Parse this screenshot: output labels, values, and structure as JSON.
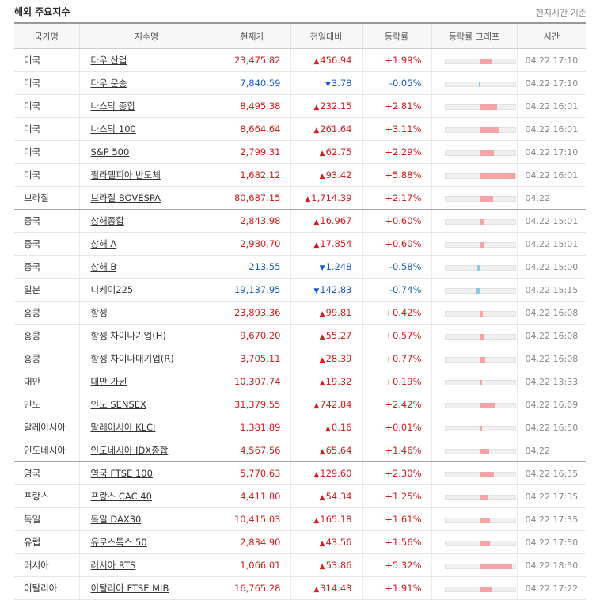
{
  "header": {
    "title": "해외 주요지수",
    "note": "현지시간 기준"
  },
  "columns": [
    "국가명",
    "지수명",
    "현재가",
    "전일대비",
    "등락률",
    "등락률 그래프",
    "시간"
  ],
  "rows": [
    {
      "country": "미국",
      "name": "다우 산업",
      "price": "23,475.82",
      "change": "456.94",
      "rate": "+1.99%",
      "dir": "up",
      "pct": 1.99,
      "time": "04.22 17:10"
    },
    {
      "country": "미국",
      "name": "다우 운송",
      "price": "7,840.59",
      "change": "3.78",
      "rate": "-0.05%",
      "dir": "down",
      "pct": -0.05,
      "time": "04.22 17:10"
    },
    {
      "country": "미국",
      "name": "나스닥 종합",
      "price": "8,495.38",
      "change": "232.15",
      "rate": "+2.81%",
      "dir": "up",
      "pct": 2.81,
      "time": "04.22 16:01"
    },
    {
      "country": "미국",
      "name": "나스닥 100",
      "price": "8,664.64",
      "change": "261.64",
      "rate": "+3.11%",
      "dir": "up",
      "pct": 3.11,
      "time": "04.22 16:01"
    },
    {
      "country": "미국",
      "name": "S&P 500",
      "price": "2,799.31",
      "change": "62.75",
      "rate": "+2.29%",
      "dir": "up",
      "pct": 2.29,
      "time": "04.22 17:10"
    },
    {
      "country": "미국",
      "name": "필라델피아 반도체",
      "price": "1,682.12",
      "change": "93.42",
      "rate": "+5.88%",
      "dir": "up",
      "pct": 5.88,
      "time": "04.22 16:01"
    },
    {
      "country": "브라질",
      "name": "브라질 BOVESPA",
      "price": "80,687.15",
      "change": "1,714.39",
      "rate": "+2.17%",
      "dir": "up",
      "pct": 2.17,
      "time": "04.22",
      "group_end": true
    },
    {
      "country": "중국",
      "name": "상해종합",
      "price": "2,843.98",
      "change": "16.967",
      "rate": "+0.60%",
      "dir": "up",
      "pct": 0.6,
      "time": "04.22 15:01"
    },
    {
      "country": "중국",
      "name": "상해 A",
      "price": "2,980.70",
      "change": "17.854",
      "rate": "+0.60%",
      "dir": "up",
      "pct": 0.6,
      "time": "04.22 15:01"
    },
    {
      "country": "중국",
      "name": "상해 B",
      "price": "213.55",
      "change": "1.248",
      "rate": "-0.58%",
      "dir": "down",
      "pct": -0.58,
      "time": "04.22 15:00"
    },
    {
      "country": "일본",
      "name": "니케이225",
      "price": "19,137.95",
      "change": "142.83",
      "rate": "-0.74%",
      "dir": "down",
      "pct": -0.74,
      "time": "04.22 15:15"
    },
    {
      "country": "홍콩",
      "name": "항셍",
      "price": "23,893.36",
      "change": "99.81",
      "rate": "+0.42%",
      "dir": "up",
      "pct": 0.42,
      "time": "04.22 16:08"
    },
    {
      "country": "홍콩",
      "name": "항셍 차이나기업(H)",
      "price": "9,670.20",
      "change": "55.27",
      "rate": "+0.57%",
      "dir": "up",
      "pct": 0.57,
      "time": "04.22 16:08"
    },
    {
      "country": "홍콩",
      "name": "항셍 차이나대기업(R)",
      "price": "3,705.11",
      "change": "28.39",
      "rate": "+0.77%",
      "dir": "up",
      "pct": 0.77,
      "time": "04.22 16:08"
    },
    {
      "country": "대만",
      "name": "대만 가권",
      "price": "10,307.74",
      "change": "19.32",
      "rate": "+0.19%",
      "dir": "up",
      "pct": 0.19,
      "time": "04.22 13:33"
    },
    {
      "country": "인도",
      "name": "인도 SENSEX",
      "price": "31,379.55",
      "change": "742.84",
      "rate": "+2.42%",
      "dir": "up",
      "pct": 2.42,
      "time": "04.22 16:09"
    },
    {
      "country": "말레이시아",
      "name": "말레이시아 KLCI",
      "price": "1,381.89",
      "change": "0.16",
      "rate": "+0.01%",
      "dir": "up",
      "pct": 0.01,
      "time": "04.22 16:50"
    },
    {
      "country": "인도네시아",
      "name": "인도네시아 IDX종합",
      "price": "4,567.56",
      "change": "65.64",
      "rate": "+1.46%",
      "dir": "up",
      "pct": 1.46,
      "time": "04.22",
      "group_end": true
    },
    {
      "country": "영국",
      "name": "영국 FTSE 100",
      "price": "5,770.63",
      "change": "129.60",
      "rate": "+2.30%",
      "dir": "up",
      "pct": 2.3,
      "time": "04.22 16:35"
    },
    {
      "country": "프랑스",
      "name": "프랑스 CAC 40",
      "price": "4,411.80",
      "change": "54.34",
      "rate": "+1.25%",
      "dir": "up",
      "pct": 1.25,
      "time": "04.22 17:35"
    },
    {
      "country": "독일",
      "name": "독일 DAX30",
      "price": "10,415.03",
      "change": "165.18",
      "rate": "+1.61%",
      "dir": "up",
      "pct": 1.61,
      "time": "04.22 17:35"
    },
    {
      "country": "유럽",
      "name": "유로스톡스 50",
      "price": "2,834.90",
      "change": "43.56",
      "rate": "+1.56%",
      "dir": "up",
      "pct": 1.56,
      "time": "04.22 17:50"
    },
    {
      "country": "러시아",
      "name": "러시아 RTS",
      "price": "1,066.01",
      "change": "53.86",
      "rate": "+5.32%",
      "dir": "up",
      "pct": 5.32,
      "time": "04.22 18:50"
    },
    {
      "country": "이탈리아",
      "name": "이탈리아 FTSE MIB",
      "price": "16,765.28",
      "change": "314.43",
      "rate": "+1.91%",
      "dir": "up",
      "pct": 1.91,
      "time": "04.22 17:22"
    }
  ],
  "icons": {
    "up": "triangle-up-icon",
    "down": "triangle-down-icon"
  },
  "colors": {
    "up": "#d61c1c",
    "down": "#1d5fc4",
    "bar_up": "#f6a3a8",
    "bar_down": "#8ccae8"
  }
}
